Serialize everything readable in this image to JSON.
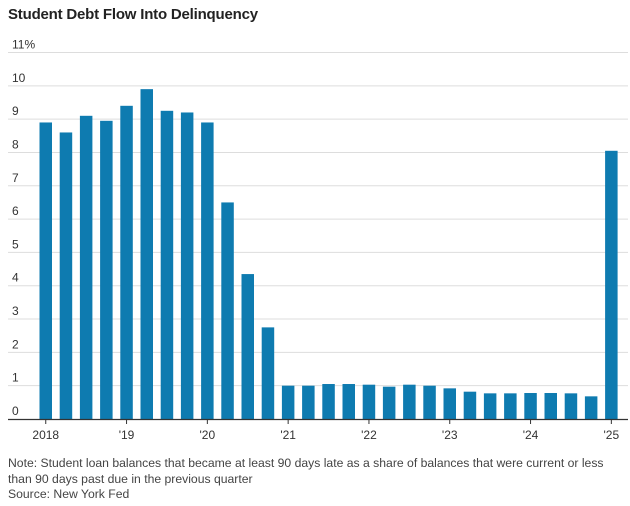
{
  "title": "Student Debt Flow Into Delinquency",
  "note": "Note: Student loan balances that became at least 90 days late as a share of balances that were current or less than 90 days past due in the previous quarter",
  "source": "Source: New York Fed",
  "colors": {
    "bar": "#0e7bb0",
    "grid": "#dddddd",
    "baseline": "#333333",
    "text": "#333333"
  },
  "chart_data": {
    "type": "bar",
    "title": "Student Debt Flow Into Delinquency",
    "xlabel": "",
    "ylabel": "",
    "ylim": [
      0,
      11
    ],
    "yticks": [
      0,
      1,
      2,
      3,
      4,
      5,
      6,
      7,
      8,
      9,
      10,
      11
    ],
    "ytick_labels": [
      "0",
      "1",
      "2",
      "3",
      "4",
      "5",
      "6",
      "7",
      "8",
      "9",
      "10",
      "11%"
    ],
    "grid": true,
    "categories": [
      "2018 Q1",
      "2018 Q2",
      "2018 Q3",
      "2018 Q4",
      "2019 Q1",
      "2019 Q2",
      "2019 Q3",
      "2019 Q4",
      "2020 Q1",
      "2020 Q2",
      "2020 Q3",
      "2020 Q4",
      "2021 Q1",
      "2021 Q2",
      "2021 Q3",
      "2021 Q4",
      "2022 Q1",
      "2022 Q2",
      "2022 Q3",
      "2022 Q4",
      "2023 Q1",
      "2023 Q2",
      "2023 Q3",
      "2023 Q4",
      "2024 Q1",
      "2024 Q2",
      "2024 Q3",
      "2024 Q4",
      "2025 Q1"
    ],
    "values": [
      8.9,
      8.6,
      9.1,
      8.95,
      9.4,
      9.9,
      9.25,
      9.2,
      8.9,
      6.5,
      4.35,
      2.75,
      1.0,
      1.0,
      1.05,
      1.05,
      1.03,
      0.97,
      1.03,
      1.0,
      0.92,
      0.82,
      0.77,
      0.77,
      0.78,
      0.78,
      0.77,
      0.68,
      8.05
    ],
    "xtick_labels": [
      {
        "label": "2018",
        "index": 0
      },
      {
        "label": "'19",
        "index": 4
      },
      {
        "label": "'20",
        "index": 8
      },
      {
        "label": "'21",
        "index": 12
      },
      {
        "label": "'22",
        "index": 16
      },
      {
        "label": "'23",
        "index": 20
      },
      {
        "label": "'24",
        "index": 24
      },
      {
        "label": "'25",
        "index": 28
      }
    ]
  }
}
